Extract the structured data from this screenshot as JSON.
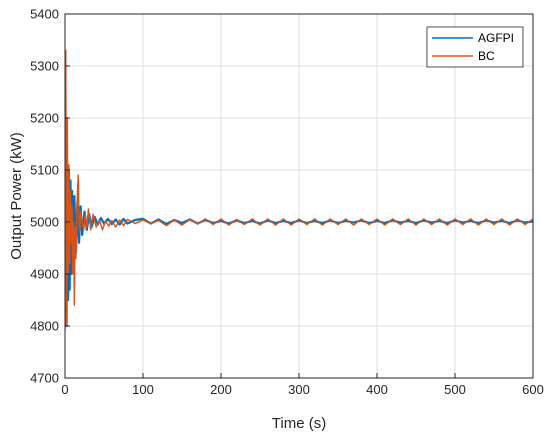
{
  "chart_data": {
    "type": "line",
    "xlabel": "Time (s)",
    "ylabel": "Output Power (kW)",
    "xlim": [
      0,
      600
    ],
    "ylim": [
      4700,
      5400
    ],
    "xticks": [
      0,
      100,
      200,
      300,
      400,
      500,
      600
    ],
    "yticks": [
      4700,
      4800,
      4900,
      5000,
      5100,
      5200,
      5300,
      5400
    ],
    "grid": true,
    "legend_position": "top-right",
    "series": [
      {
        "name": "AGFPI",
        "color": "#0072BD",
        "x": [
          0,
          1,
          2,
          3,
          4,
          5,
          6,
          7,
          8,
          9,
          10,
          12,
          14,
          16,
          18,
          20,
          22,
          25,
          28,
          31,
          34,
          38,
          42,
          46,
          50,
          55,
          60,
          65,
          70,
          75,
          80,
          90,
          100,
          110,
          120,
          130,
          140,
          150,
          160,
          170,
          180,
          190,
          200,
          210,
          220,
          230,
          240,
          250,
          260,
          270,
          280,
          290,
          300,
          310,
          320,
          330,
          340,
          350,
          360,
          370,
          380,
          390,
          400,
          410,
          420,
          430,
          440,
          450,
          460,
          470,
          480,
          490,
          500,
          510,
          520,
          530,
          540,
          550,
          560,
          570,
          580,
          590,
          600
        ],
        "y": [
          4830,
          5000,
          4800,
          5090,
          4850,
          5100,
          4870,
          5080,
          4900,
          5060,
          4930,
          5050,
          4940,
          5040,
          4960,
          5030,
          4975,
          5020,
          4985,
          5015,
          4990,
          5010,
          4995,
          5008,
          4997,
          5006,
          4996,
          5005,
          4995,
          5006,
          4997,
          5004,
          5006,
          4997,
          5005,
          4996,
          5004,
          4998,
          5005,
          4997,
          5004,
          4998,
          5002,
          4997,
          5003,
          4998,
          5002,
          4997,
          5003,
          4998,
          5002,
          4998,
          5003,
          4998,
          5002,
          4998,
          5003,
          4998,
          5002,
          4999,
          5003,
          4998,
          5002,
          4998,
          5003,
          4999,
          5002,
          4998,
          5003,
          4999,
          5002,
          4998,
          5003,
          4999,
          5002,
          4998,
          5003,
          4999,
          5002,
          4998,
          5003,
          4999,
          5001
        ]
      },
      {
        "name": "BC",
        "color": "#D95319",
        "x": [
          0,
          1,
          2,
          3,
          4,
          5,
          6,
          7,
          8,
          9,
          10,
          11,
          12,
          13,
          14,
          15,
          16,
          17,
          18,
          19,
          20,
          22,
          24,
          26,
          28,
          30,
          33,
          36,
          40,
          44,
          48,
          52,
          56,
          60,
          65,
          70,
          75,
          80,
          90,
          100,
          110,
          120,
          130,
          140,
          150,
          160,
          170,
          180,
          190,
          200,
          210,
          220,
          230,
          240,
          250,
          260,
          270,
          280,
          290,
          300,
          310,
          320,
          330,
          340,
          350,
          360,
          370,
          380,
          390,
          400,
          410,
          420,
          430,
          440,
          450,
          460,
          470,
          480,
          490,
          500,
          510,
          520,
          530,
          540,
          550,
          560,
          570,
          580,
          590,
          600
        ],
        "y": [
          4790,
          5330,
          4800,
          5200,
          4900,
          5110,
          4920,
          5060,
          4960,
          5030,
          4900,
          5000,
          4840,
          4990,
          4930,
          5000,
          5060,
          5090,
          5000,
          4980,
          5020,
          5000,
          4985,
          5015,
          4990,
          5025,
          4985,
          5015,
          4990,
          5005,
          4985,
          5002,
          4992,
          5003,
          4990,
          5004,
          4993,
          5005,
          4997,
          5004,
          4997,
          5003,
          4993,
          5004,
          4994,
          5005,
          4996,
          5006,
          4995,
          5006,
          4994,
          5005,
          4995,
          5006,
          4994,
          5006,
          4994,
          5006,
          4994,
          5006,
          4995,
          5006,
          4994,
          5006,
          4995,
          5006,
          4994,
          5006,
          4995,
          5006,
          4994,
          5006,
          4995,
          5006,
          4994,
          5006,
          4995,
          5006,
          4994,
          5006,
          4995,
          5006,
          4994,
          5006,
          4995,
          5006,
          4994,
          5006,
          4995,
          5006
        ]
      }
    ]
  }
}
